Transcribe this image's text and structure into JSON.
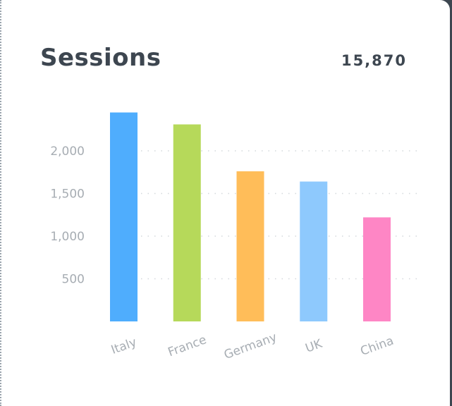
{
  "card": {
    "title": "Sessions",
    "total": "15,870"
  },
  "chart_data": {
    "type": "bar",
    "title": "Sessions",
    "categories": [
      "Italy",
      "France",
      "Germany",
      "UK",
      "China"
    ],
    "values": [
      2450,
      2310,
      1760,
      1640,
      1220
    ],
    "colors": [
      "#4fadfd",
      "#b6d95a",
      "#ffbd59",
      "#8ec9fd",
      "#fe86c5"
    ],
    "yticks": [
      500,
      1000,
      1500,
      2000
    ],
    "ytick_labels": [
      "500",
      "1,000",
      "1,500",
      "2,000"
    ],
    "ylim": [
      0,
      2500
    ],
    "grid": true,
    "xlabel": "",
    "ylabel": ""
  }
}
